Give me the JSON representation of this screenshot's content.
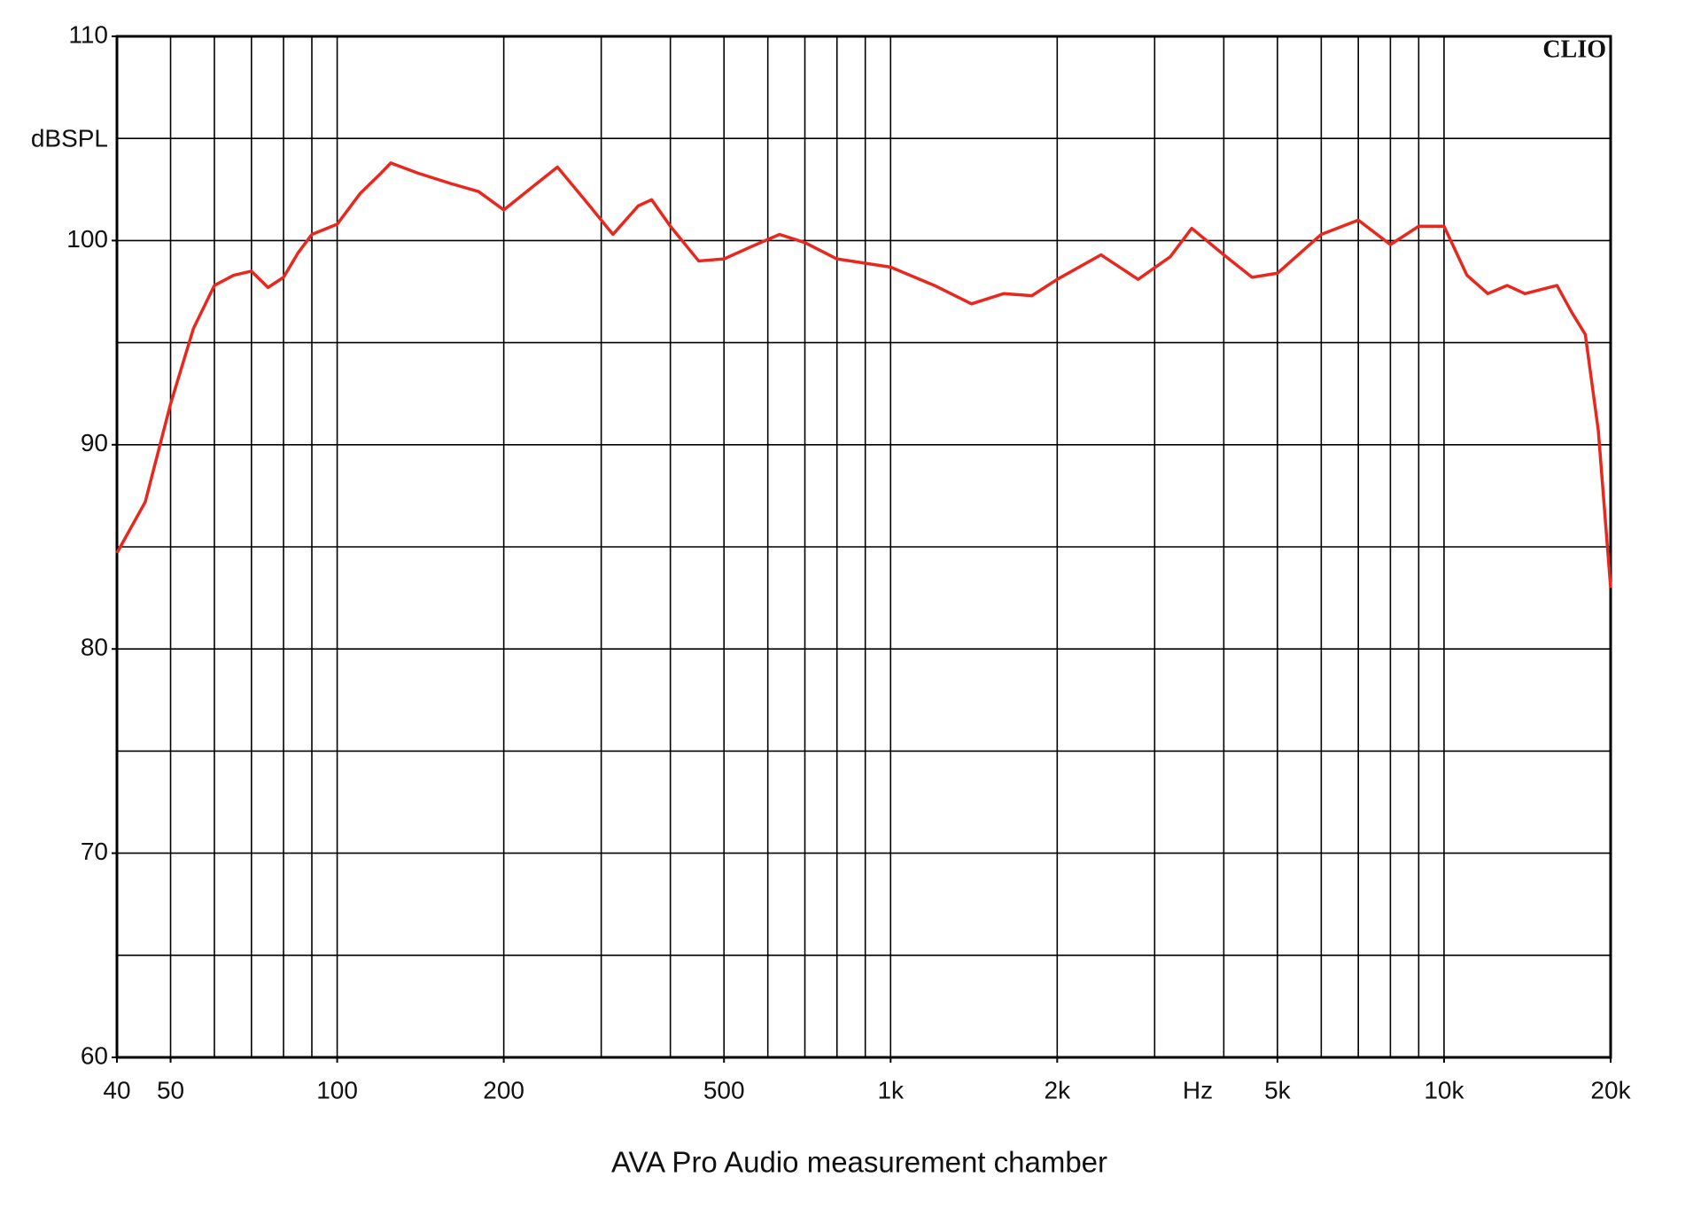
{
  "chart_data": {
    "type": "line",
    "annotation": "CLIO",
    "ylabel": "dBSPL",
    "xlabel": "Hz",
    "caption": "AVA Pro Audio measurement chamber",
    "xscale": "log",
    "color": "#e8281e",
    "grid": true,
    "xlim": [
      40,
      20000
    ],
    "ylim": [
      60,
      110
    ],
    "xticks": [
      40,
      50,
      100,
      200,
      500,
      {
        "value": 1000,
        "label": "1k"
      },
      {
        "value": 2000,
        "label": "2k"
      },
      {
        "value": 5000,
        "label": "5k"
      },
      {
        "value": 10000,
        "label": "10k"
      },
      {
        "value": 20000,
        "label": "20k"
      }
    ],
    "yticks": [
      60,
      70,
      80,
      90,
      100,
      110
    ],
    "xgrid": [
      50,
      60,
      70,
      80,
      90,
      100,
      200,
      300,
      400,
      500,
      600,
      700,
      800,
      900,
      1000,
      2000,
      3000,
      4000,
      5000,
      6000,
      7000,
      8000,
      9000,
      10000
    ],
    "ygrid": [
      65,
      70,
      75,
      80,
      85,
      90,
      95,
      100,
      105
    ],
    "x": [
      40,
      45,
      50,
      55,
      60,
      65,
      70,
      75,
      80,
      85,
      90,
      100,
      110,
      120,
      125,
      140,
      160,
      180,
      200,
      220,
      250,
      280,
      315,
      350,
      370,
      400,
      450,
      500,
      560,
      630,
      700,
      800,
      1000,
      1200,
      1400,
      1600,
      1800,
      2000,
      2400,
      2800,
      3200,
      3500,
      4000,
      4500,
      5000,
      6000,
      7000,
      8000,
      9000,
      10000,
      11000,
      12000,
      13000,
      14000,
      16000,
      17000,
      18000,
      19000,
      20000
    ],
    "values": [
      84.7,
      87.2,
      92.0,
      95.7,
      97.8,
      98.3,
      98.5,
      97.7,
      98.2,
      99.4,
      100.3,
      100.8,
      102.3,
      103.3,
      103.8,
      103.3,
      102.8,
      102.4,
      101.5,
      102.4,
      103.6,
      102.0,
      100.3,
      101.7,
      102.0,
      100.7,
      99.0,
      99.1,
      99.7,
      100.3,
      99.9,
      99.1,
      98.7,
      97.8,
      96.9,
      97.4,
      97.3,
      98.1,
      99.3,
      98.1,
      99.2,
      100.6,
      99.3,
      98.2,
      98.4,
      100.3,
      101.0,
      99.8,
      100.7,
      100.7,
      98.3,
      97.4,
      97.8,
      97.4,
      97.8,
      96.5,
      95.4,
      90.7,
      83.0
    ]
  }
}
